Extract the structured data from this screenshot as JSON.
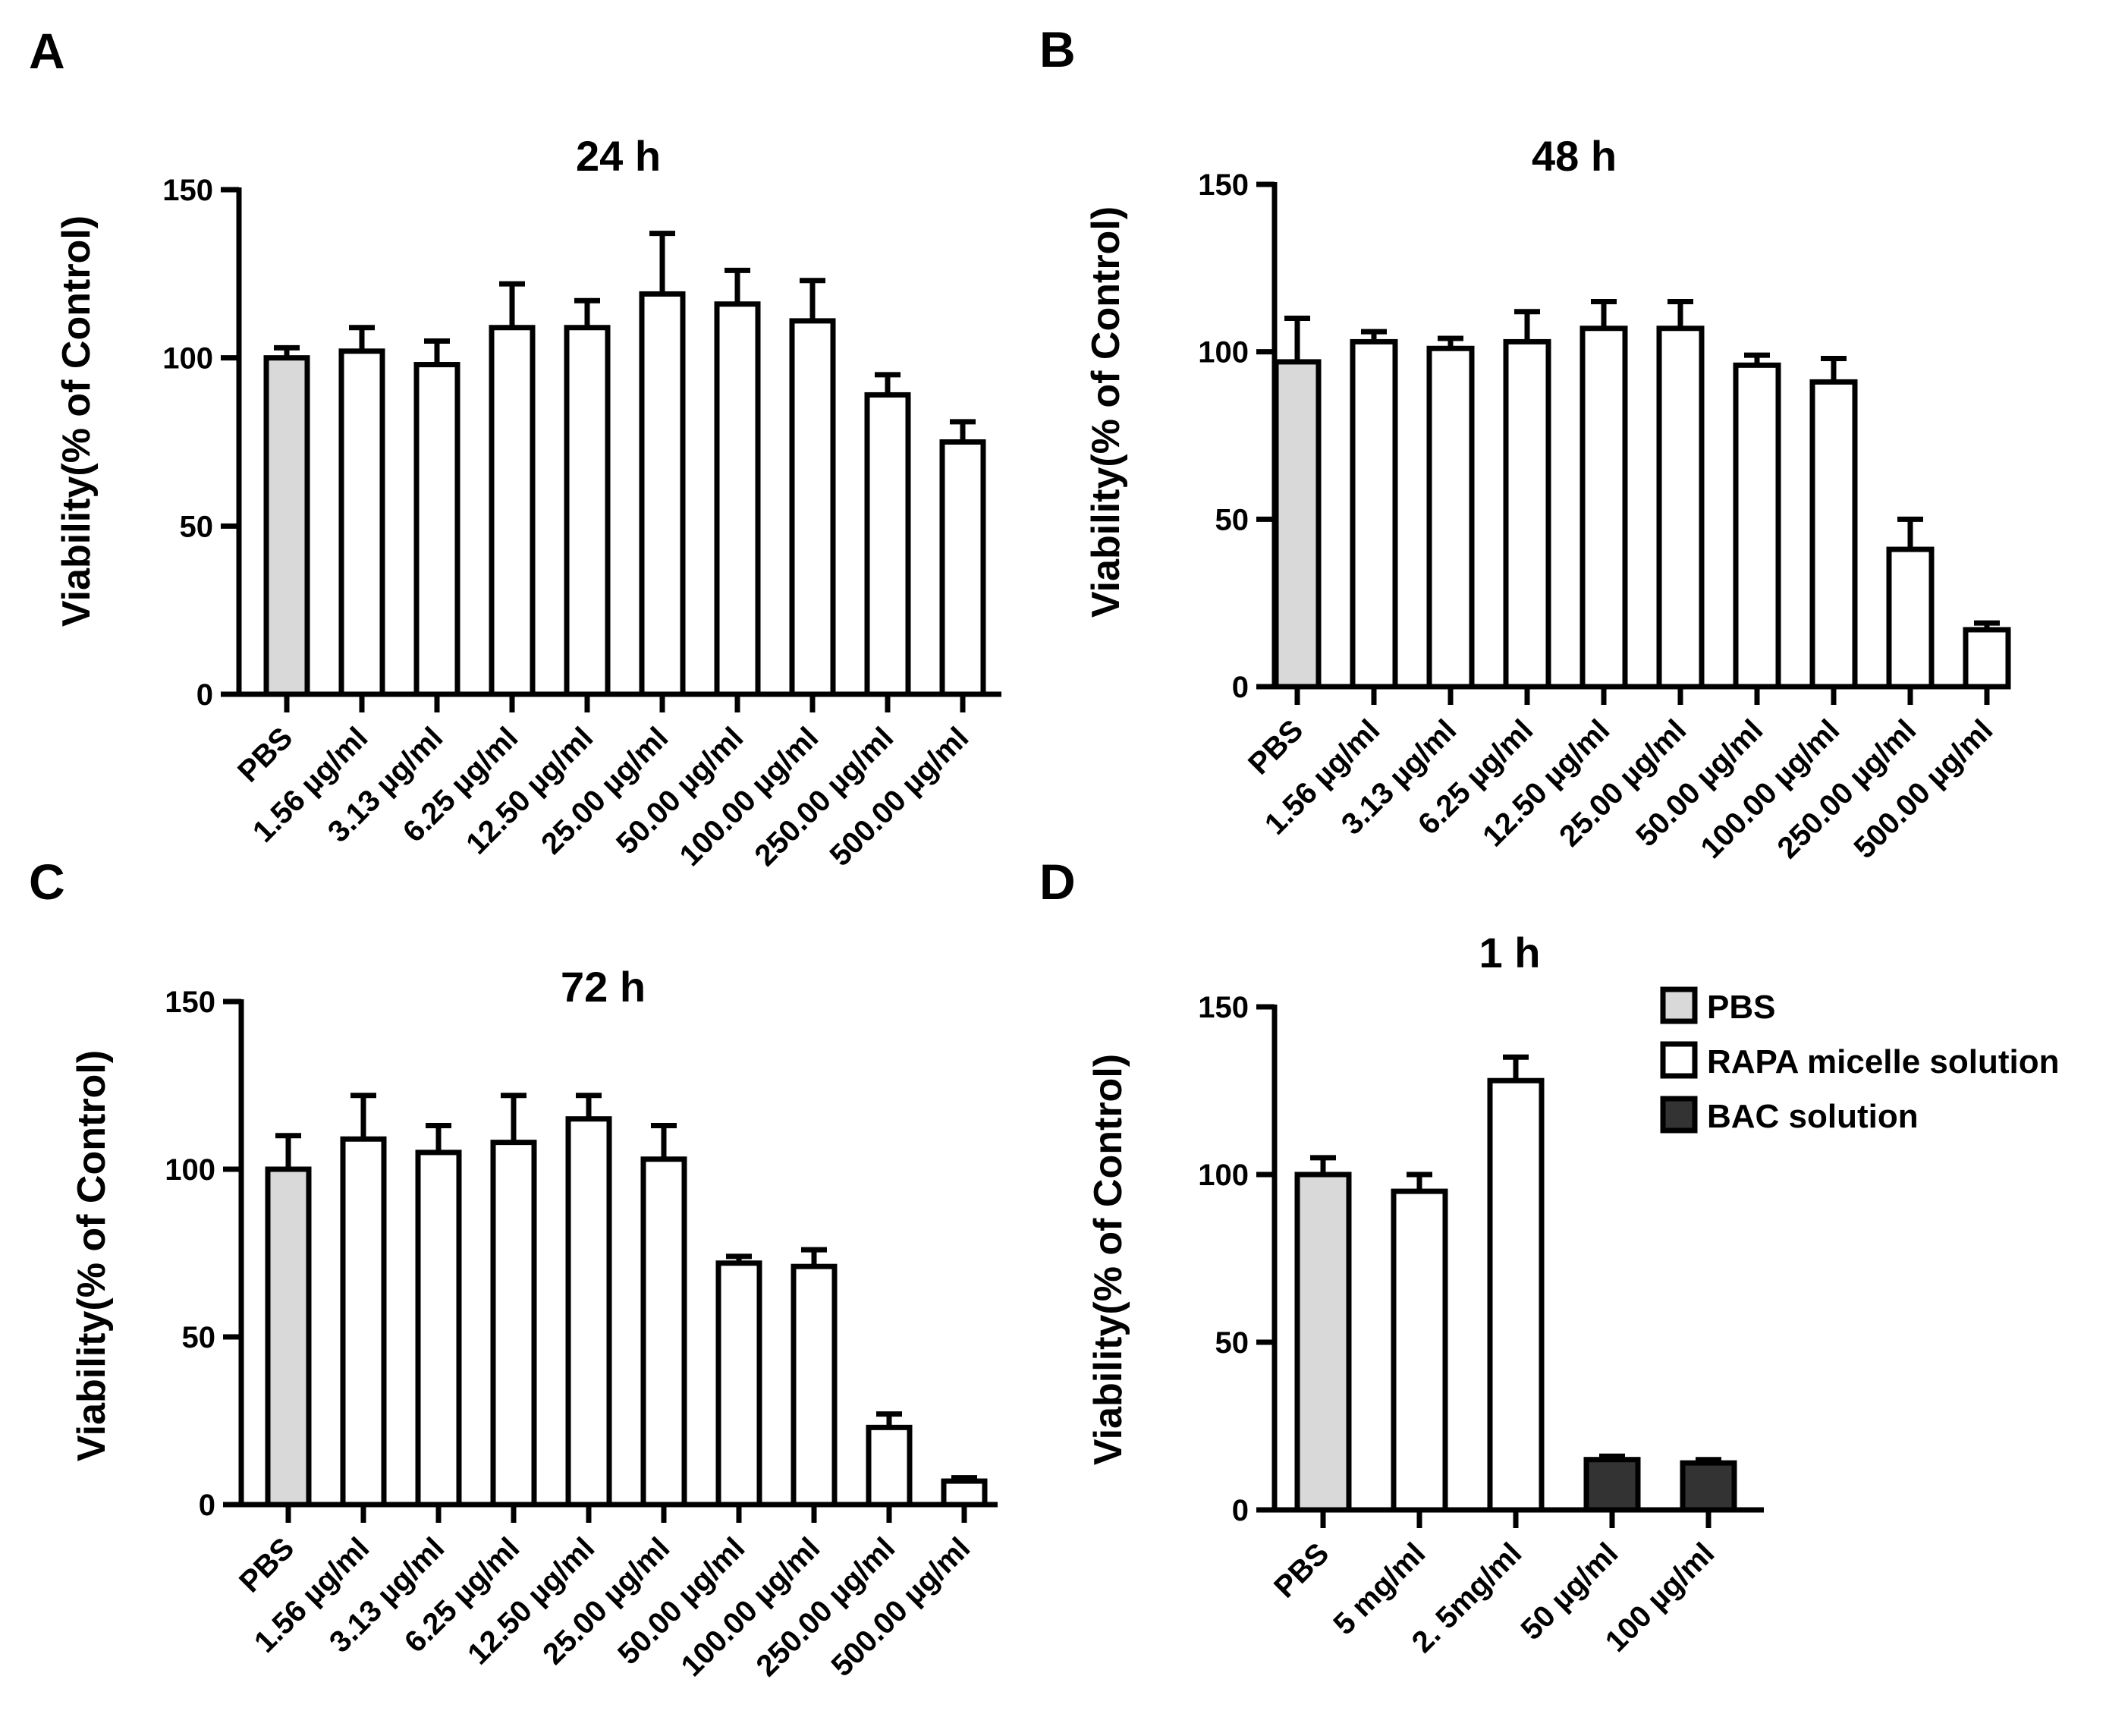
{
  "colors": {
    "PBS": "#d9d9d9",
    "RAPA micelle solution": "#ffffff",
    "BAC solution": "#333333",
    "axis": "#000000"
  },
  "chart_data": [
    {
      "panel": "A",
      "type": "bar",
      "title": "24 h",
      "ylabel": "Viability(% of Control)",
      "xlabel": "",
      "ylim": [
        0,
        150
      ],
      "yticks": [
        "0",
        "50",
        "100",
        "150"
      ],
      "categories": [
        "PBS",
        "1.56 µg/ml",
        "3.13 µg/ml",
        "6.25 µg/ml",
        "12.50 µg/ml",
        "25.00 µg/ml",
        "50.00 µg/ml",
        "100.00 µg/ml",
        "250.00 µg/ml",
        "500.00 µg/ml"
      ],
      "values": [
        100,
        102,
        98,
        109,
        109,
        119,
        116,
        111,
        89,
        75
      ],
      "errors": [
        3,
        7,
        7,
        13,
        8,
        18,
        10,
        12,
        6,
        6
      ],
      "groups": [
        "PBS",
        "RAPA micelle solution",
        "RAPA micelle solution",
        "RAPA micelle solution",
        "RAPA micelle solution",
        "RAPA micelle solution",
        "RAPA micelle solution",
        "RAPA micelle solution",
        "RAPA micelle solution",
        "RAPA micelle solution"
      ]
    },
    {
      "panel": "B",
      "type": "bar",
      "title": "48 h",
      "ylabel": "Viability(% of Control)",
      "xlabel": "",
      "ylim": [
        0,
        150
      ],
      "yticks": [
        "0",
        "50",
        "100",
        "150"
      ],
      "categories": [
        "PBS",
        "1.56 µg/ml",
        "3.13 µg/ml",
        "6.25 µg/ml",
        "12.50 µg/ml",
        "25.00 µg/ml",
        "50.00 µg/ml",
        "100.00 µg/ml",
        "250.00 µg/ml",
        "500.00 µg/ml"
      ],
      "values": [
        97,
        103,
        101,
        103,
        107,
        107,
        96,
        91,
        41,
        17
      ],
      "errors": [
        13,
        3,
        3,
        9,
        8,
        8,
        3,
        7,
        9,
        2
      ],
      "groups": [
        "PBS",
        "RAPA micelle solution",
        "RAPA micelle solution",
        "RAPA micelle solution",
        "RAPA micelle solution",
        "RAPA micelle solution",
        "RAPA micelle solution",
        "RAPA micelle solution",
        "RAPA micelle solution",
        "RAPA micelle solution"
      ]
    },
    {
      "panel": "C",
      "type": "bar",
      "title": "72 h",
      "ylabel": "Viability(% of Control)",
      "xlabel": "",
      "ylim": [
        0,
        150
      ],
      "yticks": [
        "0",
        "50",
        "100",
        "150"
      ],
      "categories": [
        "PBS",
        "1.56 µg/ml",
        "3.13 µg/ml",
        "6.25 µg/ml",
        "12.50 µg/ml",
        "25.00 µg/ml",
        "50.00 µg/ml",
        "100.00 µg/ml",
        "250.00 µg/ml",
        "500.00 µg/ml"
      ],
      "values": [
        100,
        109,
        105,
        108,
        115,
        103,
        72,
        71,
        23,
        7
      ],
      "errors": [
        10,
        13,
        8,
        14,
        7,
        10,
        2,
        5,
        4,
        1
      ],
      "groups": [
        "PBS",
        "RAPA micelle solution",
        "RAPA micelle solution",
        "RAPA micelle solution",
        "RAPA micelle solution",
        "RAPA micelle solution",
        "RAPA micelle solution",
        "RAPA micelle solution",
        "RAPA micelle solution",
        "RAPA micelle solution"
      ]
    },
    {
      "panel": "D",
      "type": "bar",
      "title": "1 h",
      "ylabel": "Viability(% of Control)",
      "xlabel": "",
      "ylim": [
        0,
        150
      ],
      "yticks": [
        "0",
        "50",
        "100",
        "150"
      ],
      "categories": [
        "PBS",
        "5 mg/ml",
        "2. 5mg/ml",
        "50 µg/ml",
        "100 µg/ml"
      ],
      "values": [
        100,
        95,
        128,
        15,
        14
      ],
      "errors": [
        5,
        5,
        7,
        1,
        1
      ],
      "groups": [
        "PBS",
        "RAPA micelle solution",
        "RAPA micelle solution",
        "BAC solution",
        "BAC solution"
      ],
      "legend": {
        "position": "top-right",
        "entries": [
          "PBS",
          "RAPA micelle solution",
          "BAC solution"
        ]
      }
    }
  ]
}
